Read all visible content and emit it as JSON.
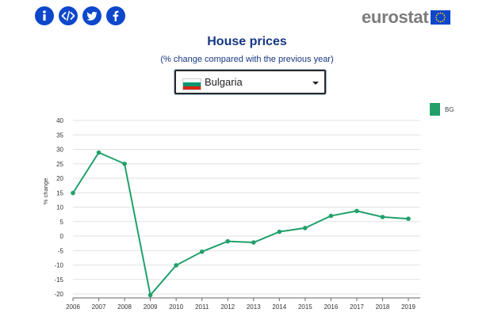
{
  "share": {
    "icons": [
      "info-icon",
      "embed-code-icon",
      "twitter-icon",
      "facebook-icon"
    ]
  },
  "logo": {
    "text": "eurostat",
    "color": "#7c7c7c",
    "flag_color": "#0e47cb",
    "star_color": "#ffcc00"
  },
  "header": {
    "title": "House prices",
    "subtitle": "(% change compared with the previous year)"
  },
  "country_select": {
    "value": "Bulgaria",
    "flag_colors": [
      "#ffffff",
      "#00966e",
      "#d62612"
    ]
  },
  "legend": {
    "label": "BG",
    "color": "#22a06b"
  },
  "chart_data": {
    "type": "line",
    "title": "House prices",
    "subtitle": "(% change compared with the previous year)",
    "xlabel": "",
    "ylabel": "% change",
    "x": [
      2006,
      2007,
      2008,
      2009,
      2010,
      2011,
      2012,
      2013,
      2014,
      2015,
      2016,
      2017,
      2018,
      2019
    ],
    "x_tick_labels": [
      "2006",
      "2007",
      "2008",
      "2009",
      "2010",
      "2011",
      "2012",
      "2013",
      "2014",
      "2015",
      "2016",
      "2017",
      "2018",
      "2019"
    ],
    "y_ticks": [
      40,
      35,
      30,
      25,
      20,
      15,
      10,
      5,
      0,
      -5,
      -10,
      -15,
      -20
    ],
    "y_tick_labels": [
      "40",
      "35",
      "30",
      "25",
      "20",
      "15",
      "10",
      "5",
      "0",
      "-5",
      "-10",
      "-15",
      "-20"
    ],
    "ylim": [
      -20,
      40
    ],
    "grid": true,
    "legend_position": "top-right",
    "series": [
      {
        "name": "BG",
        "color": "#22a06b",
        "values": [
          14.9,
          28.9,
          25.0,
          -20.4,
          -10.1,
          -5.4,
          -1.8,
          -2.2,
          1.5,
          2.8,
          7.0,
          8.7,
          6.6,
          6.0
        ]
      }
    ]
  }
}
